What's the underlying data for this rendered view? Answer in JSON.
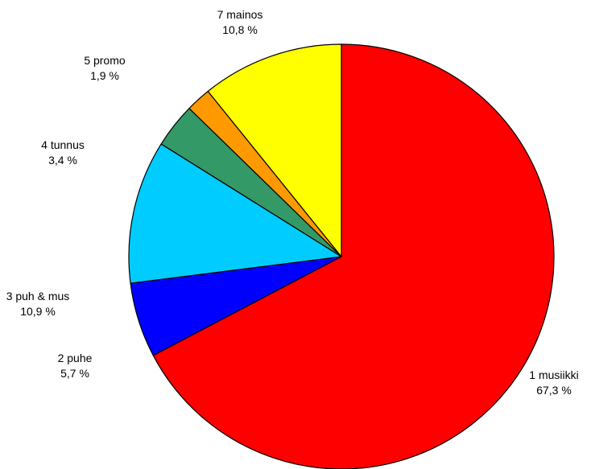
{
  "chart_data": {
    "type": "pie",
    "start": "12 o'clock",
    "direction": "clockwise",
    "slices": [
      {
        "name": "1 musiikki",
        "label": "1 musiikki",
        "value": 67.3,
        "value_label": "67,3 %",
        "color": "#FF0000"
      },
      {
        "name": "2 puhe",
        "label": "2 puhe",
        "value": 5.7,
        "value_label": "5,7 %",
        "color": "#0000FF"
      },
      {
        "name": "3 puh & mus",
        "label": "3 puh & mus",
        "value": 10.9,
        "value_label": "10,9 %",
        "color": "#00CCFF"
      },
      {
        "name": "4 tunnus",
        "label": "4 tunnus",
        "value": 3.4,
        "value_label": "3,4 %",
        "color": "#339966"
      },
      {
        "name": "5 promo",
        "label": "5 promo",
        "value": 1.9,
        "value_label": "1,9 %",
        "color": "#FF9900"
      },
      {
        "name": "7 mainos",
        "label": "7 mainos",
        "value": 10.8,
        "value_label": "10,8 %",
        "color": "#FFFF00"
      }
    ]
  }
}
